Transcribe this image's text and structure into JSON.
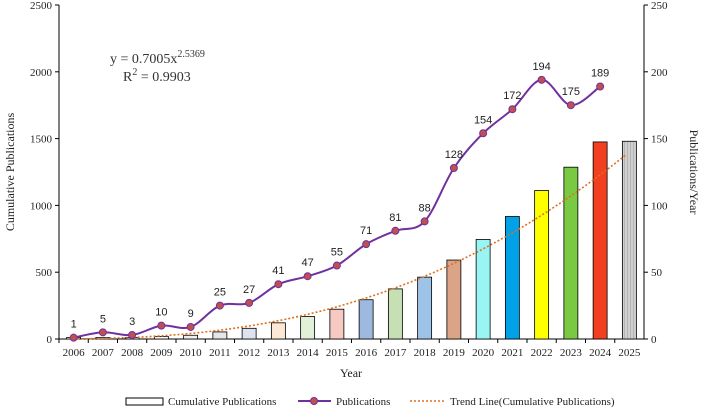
{
  "chart_data": {
    "type": "bar+line",
    "xlabel": "Year",
    "ylabel_left": "Cumulative Publications",
    "ylabel_right": "Publications/Year",
    "ylim_left": [
      0,
      2500
    ],
    "ylim_right": [
      0,
      250
    ],
    "yticks_left": [
      "0",
      "500",
      "1000",
      "1500",
      "2000",
      "2500"
    ],
    "yticks_right": [
      "0",
      "50",
      "100",
      "150",
      "200",
      "250"
    ],
    "categories": [
      "2006",
      "2007",
      "2008",
      "2009",
      "2010",
      "2011",
      "2012",
      "2013",
      "2014",
      "2015",
      "2016",
      "2017",
      "2018",
      "2019",
      "2020",
      "2021",
      "2022",
      "2023",
      "2024",
      "2025"
    ],
    "series": [
      {
        "name": "Cumulative Publications",
        "type": "bar",
        "axis": "left",
        "values": [
          1,
          6,
          9,
          19,
          28,
          53,
          80,
          121,
          168,
          223,
          294,
          375,
          463,
          591,
          745,
          917,
          1111,
          1286,
          1475,
          1480
        ],
        "colors": [
          "#ffffff",
          "#ffffff",
          "#ffffff",
          "#f8f8f8",
          "#f0f0f0",
          "#e6e6e6",
          "#dde3ee",
          "#fce8d4",
          "#e2f0d8",
          "#f7c9c3",
          "#9db9e0",
          "#c6e0b4",
          "#9dc3e6",
          "#dba486",
          "#99f4f4",
          "#00a1e6",
          "#ffff00",
          "#7ac943",
          "#f23f1f",
          "#c8c8c8"
        ],
        "hatched_last": true
      },
      {
        "name": "Publications",
        "type": "line",
        "axis": "right",
        "x": [
          "2006",
          "2007",
          "2008",
          "2009",
          "2010",
          "2011",
          "2012",
          "2013",
          "2014",
          "2015",
          "2016",
          "2017",
          "2018",
          "2019",
          "2020",
          "2021",
          "2022",
          "2023",
          "2024"
        ],
        "values": [
          1,
          5,
          3,
          10,
          9,
          25,
          27,
          41,
          47,
          55,
          71,
          81,
          88,
          128,
          154,
          172,
          194,
          175,
          189
        ],
        "labels": [
          "1",
          "5",
          "3",
          "10",
          "9",
          "25",
          "27",
          "41",
          "47",
          "55",
          "71",
          "81",
          "88",
          "128",
          "154",
          "172",
          "194",
          "175",
          "189"
        ],
        "line_color": "#7030a0",
        "marker_color": "#c0504d"
      },
      {
        "name": "Trend Line(Cumulative Publications)",
        "type": "trend",
        "axis": "left",
        "color": "#e07020",
        "coef": 0.7005,
        "exponent": 2.5369
      }
    ],
    "annotations": {
      "equation_base": "y = 0.7005x",
      "equation_exp": "2.5369",
      "r2_base": "R",
      "r2_exp": "2",
      "r2_value": " = 0.9903"
    },
    "legend": [
      "Cumulative Publications",
      "Publications",
      "Trend Line(Cumulative Publications)"
    ]
  }
}
